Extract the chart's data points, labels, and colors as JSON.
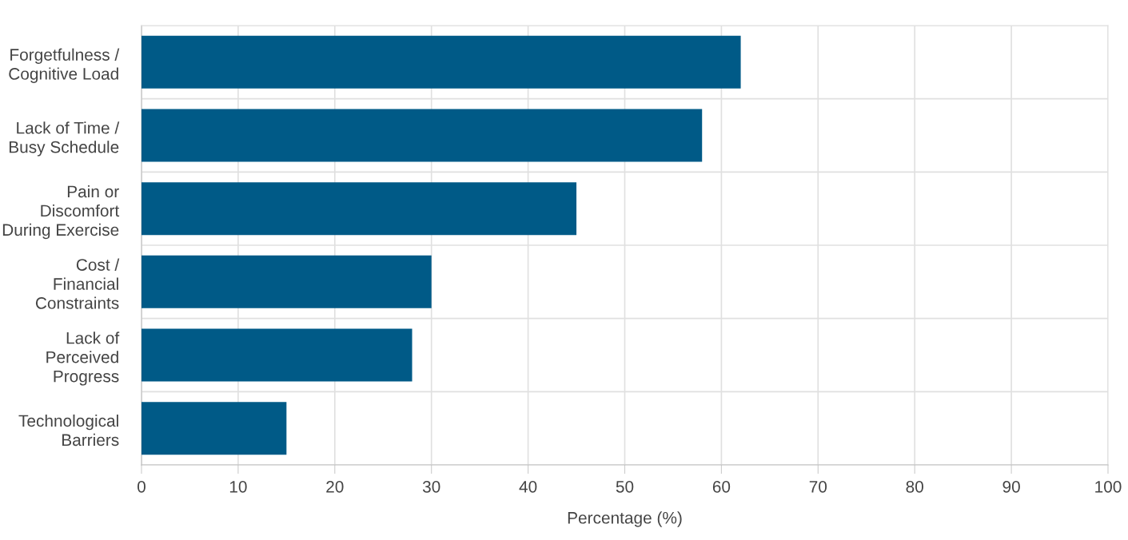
{
  "chart_data": {
    "type": "bar",
    "orientation": "horizontal",
    "xlabel": "Percentage (%)",
    "categories": [
      "Forgetfulness /\nCognitive Load",
      "Lack of Time /\nBusy Schedule",
      "Pain or\nDiscomfort\nDuring Exercise",
      "Cost /\nFinancial\nConstraints",
      "Lack of\nPerceived\nProgress",
      "Technological\nBarriers"
    ],
    "values": [
      62,
      58,
      45,
      30,
      28,
      15
    ],
    "color": "#005a87",
    "xlim": [
      0,
      100
    ],
    "xticks": [
      0,
      10,
      20,
      30,
      40,
      50,
      60,
      70,
      80,
      90,
      100
    ],
    "grid": true,
    "legend": false
  }
}
